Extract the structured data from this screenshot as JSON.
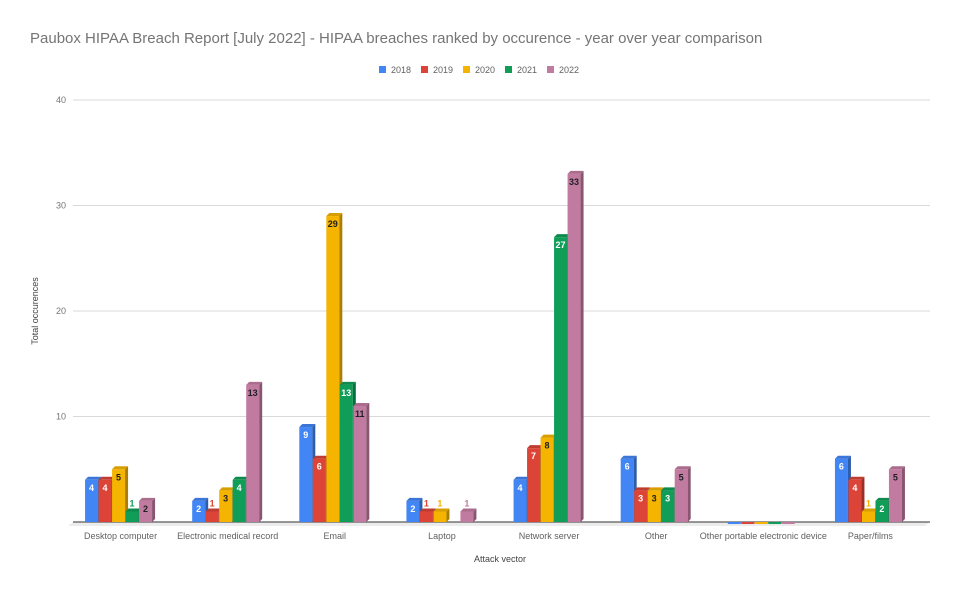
{
  "chart_data": {
    "type": "bar",
    "title": "Paubox HIPAA Breach Report [July 2022] - HIPAA breaches ranked by occurence - year over year comparison",
    "xlabel": "Attack vector",
    "ylabel": "Total occurences",
    "ylim": [
      0,
      40
    ],
    "yticks": [
      "10",
      "20",
      "30",
      "40"
    ],
    "ytick_values": [
      10,
      20,
      30,
      40
    ],
    "grid": true,
    "legend_position": "top",
    "categories": [
      "Desktop computer",
      "Electronic medical record",
      "Email",
      "Laptop",
      "Network server",
      "Other",
      "Other portable electronic device",
      "Paper/films"
    ],
    "series": [
      {
        "name": "2018",
        "color": "#4285f4",
        "label_color": "#ffffff",
        "values": [
          4,
          2,
          9,
          2,
          4,
          6,
          0,
          6
        ]
      },
      {
        "name": "2019",
        "color": "#db4437",
        "label_color": "#ffffff",
        "values": [
          4,
          1,
          6,
          1,
          7,
          3,
          0,
          4
        ]
      },
      {
        "name": "2020",
        "color": "#f4b400",
        "label_color": "#202124",
        "values": [
          5,
          3,
          29,
          1,
          8,
          3,
          0,
          1
        ]
      },
      {
        "name": "2021",
        "color": "#0f9d58",
        "label_color": "#ffffff",
        "values": [
          1,
          4,
          13,
          0,
          27,
          3,
          0,
          2
        ]
      },
      {
        "name": "2022",
        "color": "#c27ba0",
        "label_color": "#202124",
        "values": [
          2,
          13,
          11,
          1,
          33,
          5,
          0,
          5
        ]
      }
    ]
  }
}
